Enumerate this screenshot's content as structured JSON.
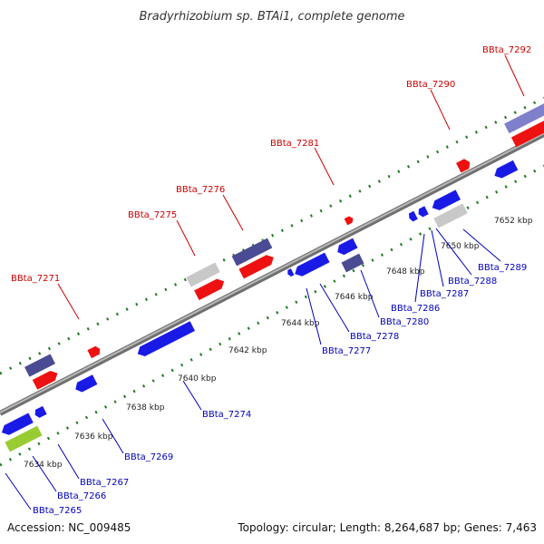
{
  "header": {
    "title": "Bradyrhizobium sp. BTAi1, complete genome"
  },
  "footer": {
    "accession": "Accession: NC_009485",
    "summary": "Topology: circular; Length: 8,264,687 bp; Genes: 7,463"
  },
  "colors": {
    "backbone": "#8a8a8a",
    "tick": "#1f7a1f",
    "forward_label": "#cc0000",
    "reverse_label": "#0000bb",
    "gene_red": "#ee1111",
    "gene_blue": "#1a1ae6",
    "gene_navy": "#4b4b93",
    "gene_grey": "#c8c8c8",
    "gene_lightgreen": "#99cc33",
    "gene_lavender": "#7f7fcc"
  },
  "scale_labels": [
    "7634 kbp",
    "7636 kbp",
    "7638 kbp",
    "7640 kbp",
    "7642 kbp",
    "7644 kbp",
    "7646 kbp",
    "7648 kbp",
    "7650 kbp",
    "7652 kbp"
  ],
  "forward_labels": [
    "BBta_7271",
    "BBta_7275",
    "BBta_7276",
    "BBta_7281",
    "BBta_7290",
    "BBta_7292"
  ],
  "reverse_labels": [
    "BBta_7265",
    "BBta_7266",
    "BBta_7267",
    "BBta_7269",
    "BBta_7274",
    "BBta_7277",
    "BBta_7278",
    "BBta_7280",
    "BBta_7286",
    "BBta_7287",
    "BBta_7288",
    "BBta_7289"
  ]
}
